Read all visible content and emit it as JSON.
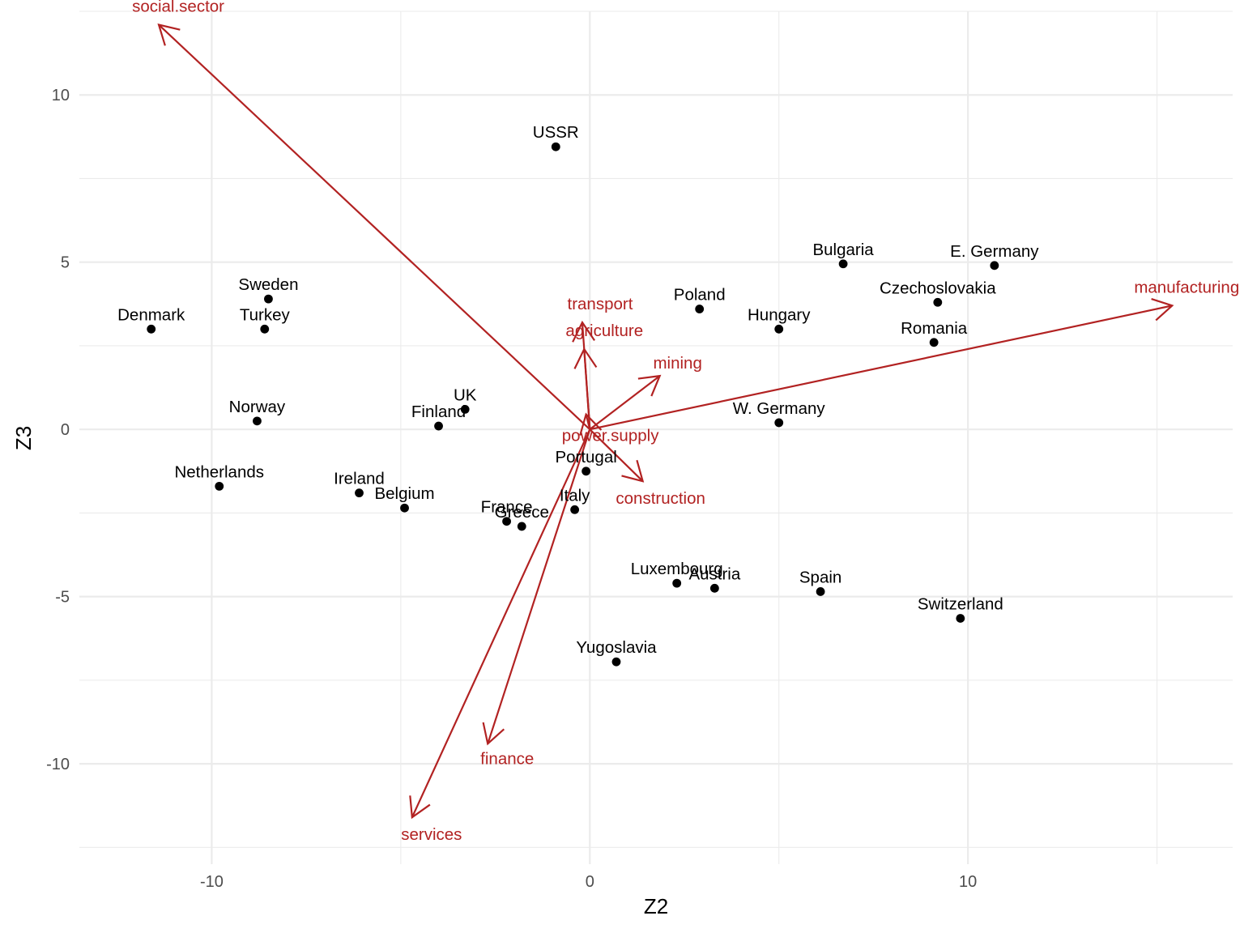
{
  "colors": {
    "background": "#ffffff",
    "grid": "#ebebeb",
    "point": "#000000",
    "arrow": "#b22222",
    "tick_text": "#4d4d4d",
    "axis_title_text": "#000000"
  },
  "chart_data": {
    "type": "scatter",
    "subtype": "biplot",
    "title": "",
    "xlabel": "Z2",
    "ylabel": "Z3",
    "xlim": [
      -13.5,
      17.0
    ],
    "ylim": [
      -13.0,
      12.5
    ],
    "x_ticks": [
      -10,
      0,
      10
    ],
    "y_ticks": [
      -10,
      -5,
      0,
      5,
      10
    ],
    "x_tick_labels": [
      "-10",
      "0",
      "10"
    ],
    "y_tick_labels": [
      "-10",
      "-5",
      "0",
      "5",
      "10"
    ],
    "x_minor_grid": [
      -5,
      5,
      15
    ],
    "y_minor_grid": [
      -12.5,
      -7.5,
      -2.5,
      2.5,
      7.5,
      12.5
    ],
    "grid": true,
    "legend": "none",
    "points": [
      {
        "label": "USSR",
        "x": -0.9,
        "y": 8.45
      },
      {
        "label": "Bulgaria",
        "x": 6.7,
        "y": 4.95
      },
      {
        "label": "E. Germany",
        "x": 10.7,
        "y": 4.9
      },
      {
        "label": "Czechoslovakia",
        "x": 9.2,
        "y": 3.8
      },
      {
        "label": "Poland",
        "x": 2.9,
        "y": 3.6
      },
      {
        "label": "Hungary",
        "x": 5.0,
        "y": 3.0
      },
      {
        "label": "Romania",
        "x": 9.1,
        "y": 2.6
      },
      {
        "label": "Sweden",
        "x": -8.5,
        "y": 3.9
      },
      {
        "label": "Turkey",
        "x": -8.6,
        "y": 3.0
      },
      {
        "label": "Denmark",
        "x": -11.6,
        "y": 3.0
      },
      {
        "label": "Norway",
        "x": -8.8,
        "y": 0.25
      },
      {
        "label": "UK",
        "x": -3.3,
        "y": 0.6
      },
      {
        "label": "Finland",
        "x": -4.0,
        "y": 0.1
      },
      {
        "label": "W. Germany",
        "x": 5.0,
        "y": 0.2
      },
      {
        "label": "Portugal",
        "x": -0.1,
        "y": -1.25
      },
      {
        "label": "Netherlands",
        "x": -9.8,
        "y": -1.7
      },
      {
        "label": "Ireland",
        "x": -6.1,
        "y": -1.9
      },
      {
        "label": "Belgium",
        "x": -4.9,
        "y": -2.35
      },
      {
        "label": "Italy",
        "x": -0.4,
        "y": -2.4
      },
      {
        "label": "France",
        "x": -2.2,
        "y": -2.75
      },
      {
        "label": "Greece",
        "x": -1.8,
        "y": -2.9
      },
      {
        "label": "Luxembourg",
        "x": 2.3,
        "y": -4.6
      },
      {
        "label": "Austria",
        "x": 3.3,
        "y": -4.75
      },
      {
        "label": "Spain",
        "x": 6.1,
        "y": -4.85
      },
      {
        "label": "Switzerland",
        "x": 9.8,
        "y": -5.65
      },
      {
        "label": "Yugoslavia",
        "x": 0.7,
        "y": -6.95
      }
    ],
    "arrows": [
      {
        "label": "social.sector",
        "x": -11.4,
        "y": 12.1
      },
      {
        "label": "manufacturing",
        "x": 15.4,
        "y": 3.7
      },
      {
        "label": "transport",
        "x": -0.2,
        "y": 3.2
      },
      {
        "label": "agriculture",
        "x": -0.15,
        "y": 2.4
      },
      {
        "label": "mining",
        "x": 1.85,
        "y": 1.6
      },
      {
        "label": "power.supply",
        "x": -0.1,
        "y": 0.45
      },
      {
        "label": "construction",
        "x": 1.4,
        "y": -1.55
      },
      {
        "label": "finance",
        "x": -2.7,
        "y": -9.4
      },
      {
        "label": "services",
        "x": -4.7,
        "y": -11.6
      }
    ]
  }
}
